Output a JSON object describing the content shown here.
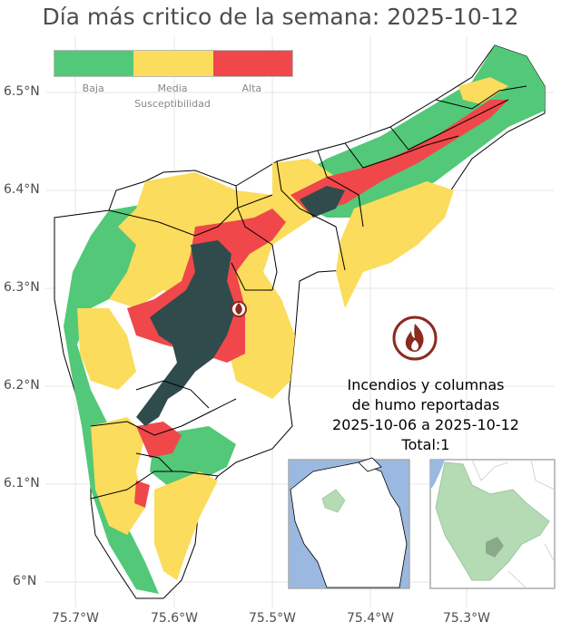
{
  "title": "Día más critico de la semana: 2025-10-12",
  "legend": {
    "items": [
      {
        "label": "Baja",
        "color": "#52c878"
      },
      {
        "label": "Media",
        "color": "#fbdc5c"
      },
      {
        "label": "Alta",
        "color": "#f0474b"
      }
    ],
    "title": "Susceptibilidad"
  },
  "axes": {
    "lat_ticks": [
      "6.5°N",
      "6.4°N",
      "6.3°N",
      "6.2°N",
      "6.1°N",
      "6°N"
    ],
    "lon_ticks": [
      "75.7°W",
      "75.6°W",
      "75.5°W",
      "75.4°W",
      "75.3°W"
    ]
  },
  "annotation": {
    "line1": "Incendios y columnas",
    "line2": "de humo reportadas",
    "line3": "2025-10-06 a 2025-10-12",
    "line4": "Total:1"
  },
  "fire_icon": "fire-icon",
  "reported_fires": [
    {
      "lon": -75.535,
      "lat": 6.276
    }
  ],
  "colors": {
    "sea": "#9bb8e0",
    "region_highlight": "#b5dbb5",
    "dark_zone": "#2f4b4c",
    "grid": "#e5e5e5",
    "fire_icon_ring": "#8b2a1f"
  }
}
